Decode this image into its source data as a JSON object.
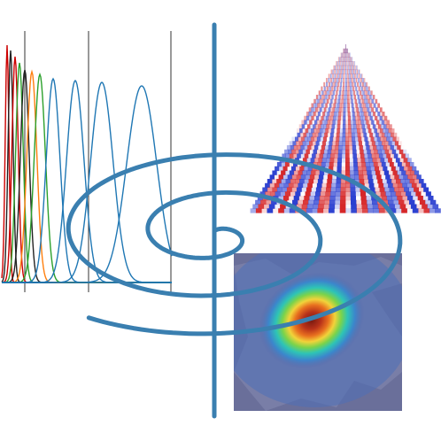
{
  "logo": {
    "spiral_color": "#3a7fb0",
    "curve_colors": [
      "#cc0000",
      "#222222",
      "#2ca02c",
      "#ff7f0e",
      "#1f77b4"
    ],
    "heatmap_palette": [
      "#2b4aa0",
      "#3c7fd0",
      "#2ec4b6",
      "#7bd34a",
      "#f2e14a",
      "#f59a2c",
      "#d93a1c",
      "#7a1a10"
    ],
    "interference_colors": [
      "#d62728",
      "#2a3fd0"
    ]
  }
}
